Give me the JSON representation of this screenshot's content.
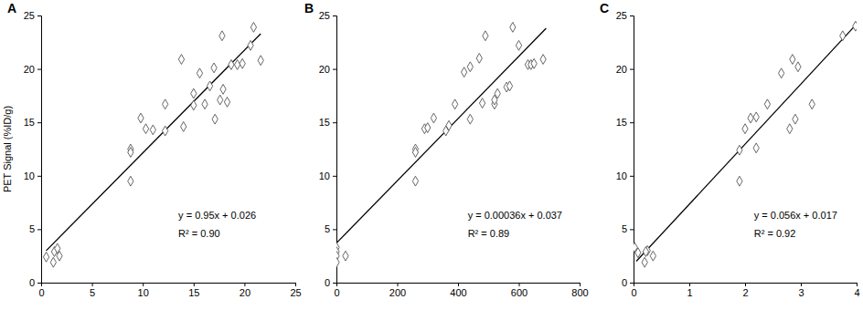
{
  "chart_data": [
    {
      "type": "scatter",
      "title": "A",
      "y_label": "PET Signal (%ID/g)",
      "x": [
        0.5,
        1.2,
        1.3,
        1.6,
        1.8,
        8.8,
        8.8,
        8.8,
        9.8,
        10.3,
        11,
        12.2,
        12.2,
        13.8,
        14,
        15,
        15,
        15.6,
        16.1,
        16.6,
        17,
        17.1,
        17.6,
        17.8,
        17.9,
        18.3,
        18.7,
        19.3,
        19.8,
        20.6,
        20.9,
        21.6
      ],
      "values": [
        2.4,
        1.9,
        2.9,
        3.2,
        2.5,
        12.5,
        12.2,
        9.5,
        15.4,
        14.4,
        14.3,
        16.7,
        14.2,
        20.9,
        14.6,
        17.7,
        16.6,
        19.6,
        16.7,
        18.4,
        20.1,
        15.3,
        17.1,
        23.1,
        18.1,
        16.9,
        20.4,
        20.4,
        20.5,
        22.2,
        23.9,
        20.8
      ],
      "xlim": [
        0,
        25
      ],
      "xticks": [
        0,
        5,
        10,
        15,
        20,
        25
      ],
      "ylim": [
        0,
        25
      ],
      "yticks": [
        0,
        5,
        10,
        15,
        20,
        25
      ],
      "marker": "diamond",
      "color": "#555555",
      "fit_line": {
        "x": [
          0.5,
          21.6
        ],
        "values": [
          3.0,
          23.3
        ],
        "color": "#000000"
      },
      "annotations": [
        "y = 0.95x + 0.026",
        "R² = 0.90"
      ]
    },
    {
      "type": "scatter",
      "title": "B",
      "x": [
        0,
        0,
        0,
        0,
        30,
        260,
        260,
        260,
        290,
        300,
        320,
        360,
        370,
        390,
        420,
        440,
        440,
        470,
        480,
        490,
        520,
        520,
        530,
        560,
        570,
        580,
        600,
        630,
        640,
        650,
        680
      ],
      "values": [
        3.3,
        2.9,
        2.5,
        1.9,
        2.5,
        12.5,
        12.2,
        9.5,
        14.4,
        14.5,
        15.4,
        14.2,
        14.7,
        16.7,
        19.7,
        20.2,
        15.3,
        21,
        16.8,
        23.1,
        16.7,
        17.1,
        17.7,
        18.3,
        18.4,
        23.9,
        22.2,
        20.4,
        20.4,
        20.5,
        20.9
      ],
      "xlim": [
        0,
        800
      ],
      "xticks": [
        0,
        200,
        400,
        600,
        800
      ],
      "ylim": [
        0,
        25
      ],
      "yticks": [
        0,
        5,
        10,
        15,
        20,
        25
      ],
      "marker": "diamond",
      "color": "#555555",
      "fit_line": {
        "x": [
          0,
          690
        ],
        "values": [
          3.7,
          23.8
        ],
        "color": "#000000"
      },
      "annotations": [
        "y = 0.00036x + 0.037",
        "R² = 0.89"
      ]
    },
    {
      "type": "scatter",
      "title": "C",
      "x": [
        0.02,
        0.08,
        0.2,
        0.25,
        0.35,
        0.22,
        1.9,
        1.9,
        2.0,
        2.1,
        2.2,
        2.2,
        2.4,
        2.65,
        2.8,
        2.85,
        2.9,
        2.95,
        3.2,
        3.75,
        3.98
      ],
      "values": [
        3.3,
        2.8,
        1.9,
        3.0,
        2.5,
        2.9,
        12.4,
        9.5,
        14.4,
        15.4,
        12.6,
        15.5,
        16.7,
        19.6,
        14.4,
        20.9,
        15.3,
        20.2,
        16.7,
        23.1,
        24
      ],
      "xlim": [
        0,
        4
      ],
      "xticks": [
        0,
        1,
        2,
        3,
        4
      ],
      "ylim": [
        0,
        25
      ],
      "yticks": [
        0,
        5,
        10,
        15,
        20,
        25
      ],
      "marker": "diamond",
      "color": "#555555",
      "fit_line": {
        "x": [
          0.05,
          4
        ],
        "values": [
          2.0,
          24.2
        ],
        "color": "#000000"
      },
      "annotations": [
        "y = 0.056x + 0.017",
        "R² = 0.92"
      ]
    }
  ]
}
